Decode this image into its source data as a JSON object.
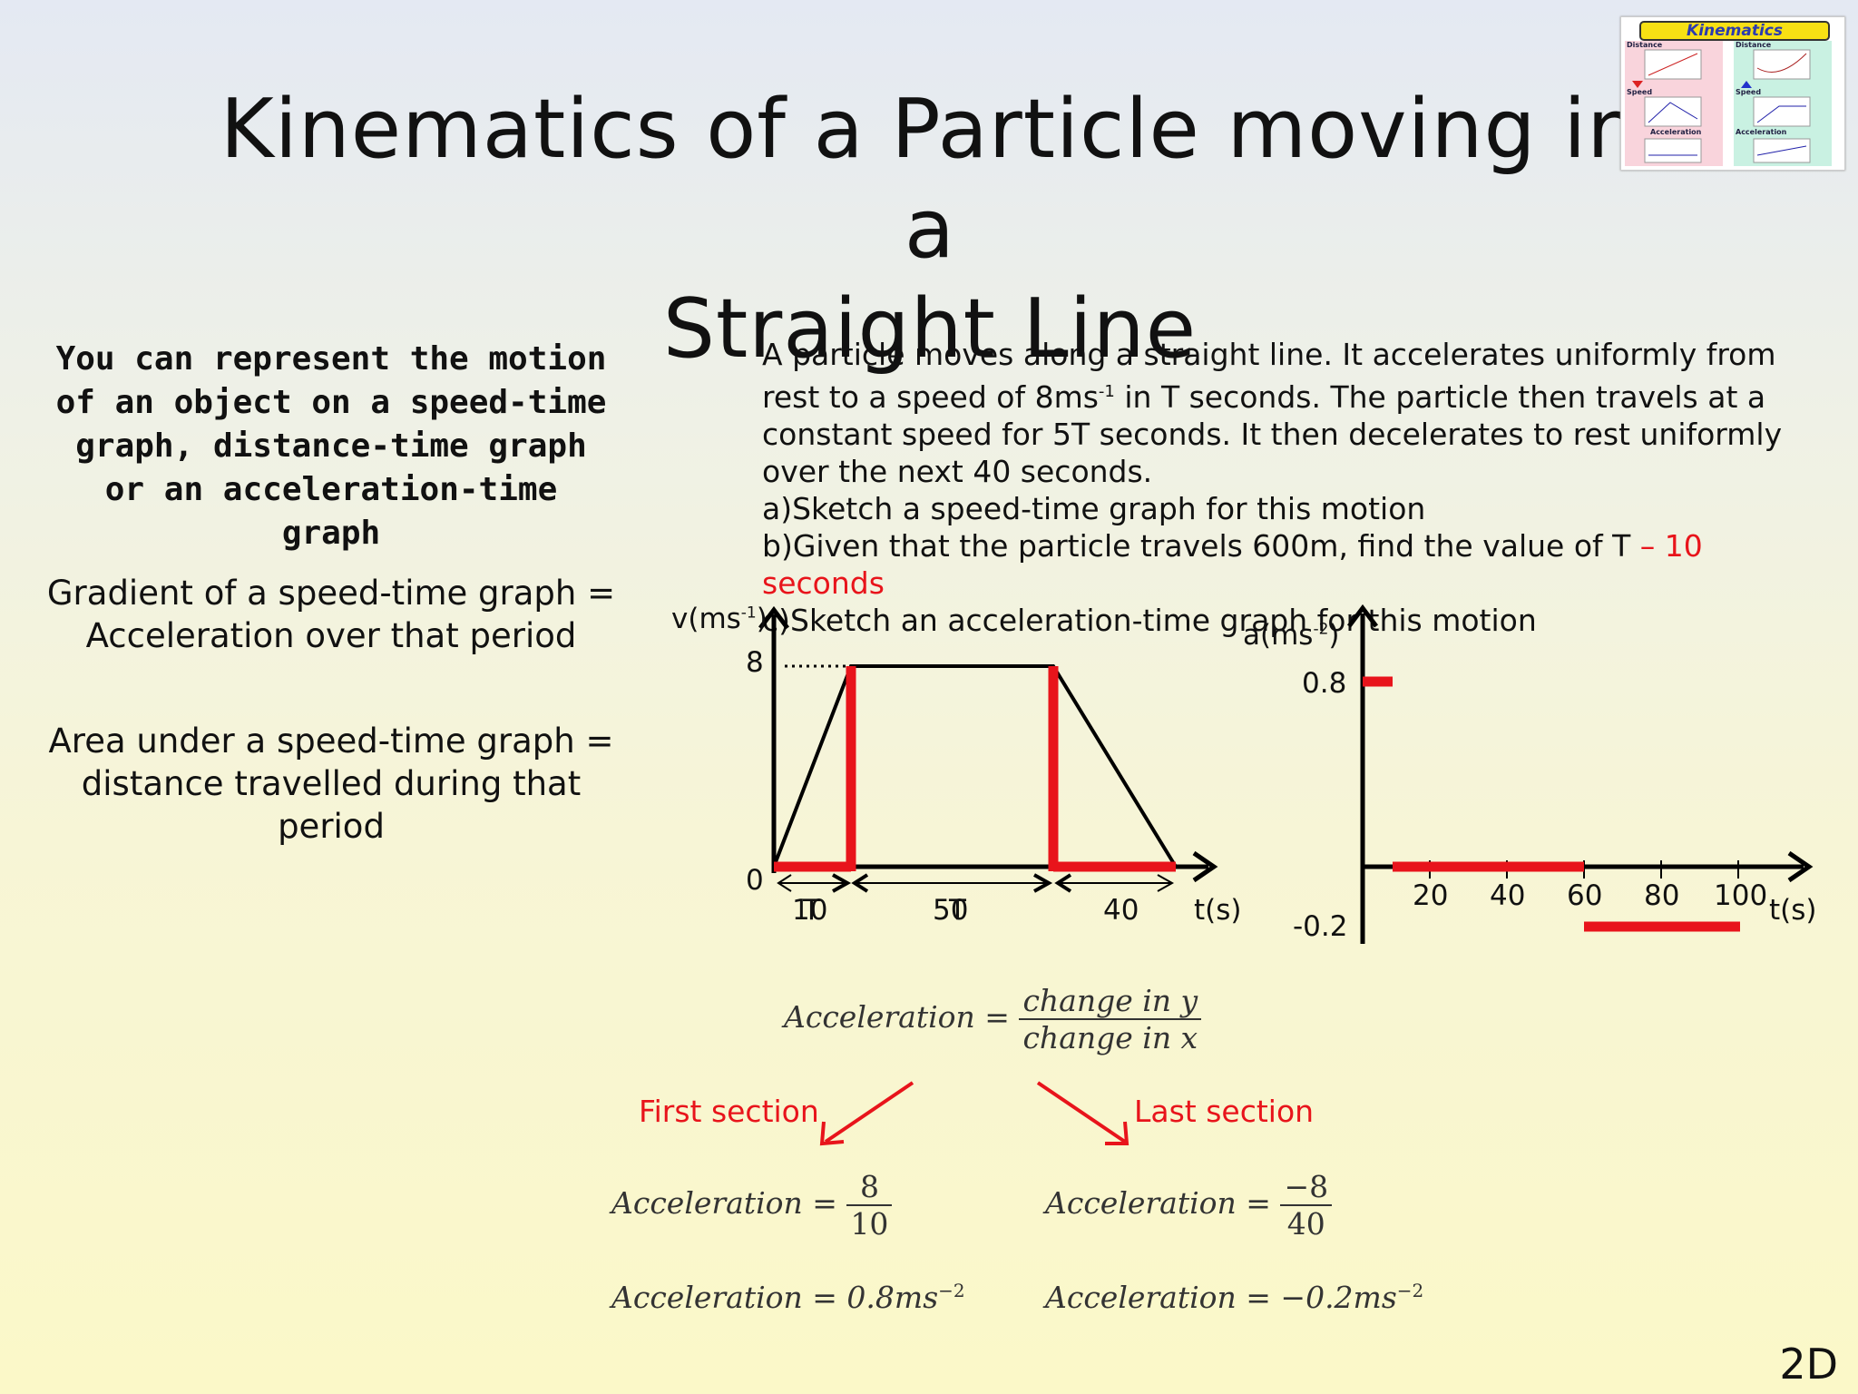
{
  "title": {
    "line1": "Kinematics of a Particle moving in a",
    "line2": "Straight Line"
  },
  "thumbnail": {
    "heading": "Kinematics",
    "labels": [
      "Distance",
      "Distance",
      "Speed",
      "Speed",
      "Acceleration",
      "Acceleration"
    ]
  },
  "left_panel": {
    "intro": "You can represent the motion of an object on a speed-time graph, distance-time graph or an acceleration-time graph",
    "gradient_rule": "Gradient of a speed-time graph = Acceleration over that period",
    "area_rule": "Area under a speed-time graph = distance travelled during that period"
  },
  "problem": {
    "text_a": "A particle moves along a straight line. It accelerates uniformly from rest to a speed of 8ms",
    "unit_sup": "-1",
    "text_b": " in T seconds. The particle then travels at a constant speed for 5T seconds. It then decelerates to rest uniformly over the next 40 seconds.",
    "part_a": "a)Sketch a speed-time graph for this motion",
    "part_b": "b)Given that the particle travels 600m, find the value of T",
    "part_b_answer": " – 10 seconds",
    "part_c": "c)Sketch an acceleration-time graph for this motion"
  },
  "speed_graph": {
    "y_axis_label": "v(ms",
    "y_axis_sup": "-1",
    "y_axis_close": ")",
    "x_axis_label": "t(s)",
    "y_tick_top": "8",
    "y_tick_zero": "0",
    "segment_labels": [
      "10",
      "50",
      "40"
    ],
    "overstruck_labels": [
      "T",
      "T"
    ]
  },
  "accel_graph": {
    "y_axis_label": "a(ms",
    "y_axis_sup": "-2",
    "y_axis_close": ")",
    "x_axis_label": "t(s)",
    "y_tick_top": "0.8",
    "y_tick_bottom": "-0.2",
    "x_ticks": [
      "20",
      "40",
      "60",
      "80",
      "100"
    ]
  },
  "formulas": {
    "general_lhs": "Acceleration =",
    "general_num": "change in y",
    "general_den": "change in x",
    "first_section_label": "First section",
    "last_section_label": "Last section",
    "first_lhs": "Acceleration =",
    "first_num": "8",
    "first_den": "10",
    "first_result": "Acceleration = 0.8ms",
    "first_result_sup": "−2",
    "last_lhs": "Acceleration =",
    "last_num": "−8",
    "last_den": "40",
    "last_result": "Acceleration = −0.2ms",
    "last_result_sup": "−2"
  },
  "page_number": "2D",
  "colors": {
    "accent_red": "#e8141b",
    "thumb_banner": "#f7e014"
  }
}
